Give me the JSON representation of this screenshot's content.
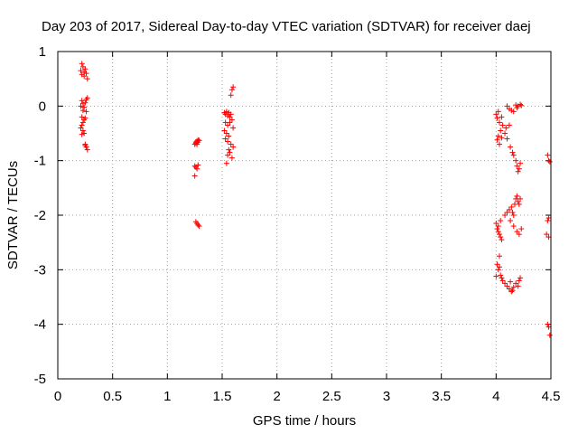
{
  "chart_data": {
    "type": "scatter",
    "title": "Day 203 of 2017, Sidereal Day-to-day VTEC variation (SDTVAR) for receiver daej",
    "xlabel": "GPS time / hours",
    "ylabel": "SDTVAR / TECUs",
    "xlim": [
      0,
      4.5
    ],
    "ylim": [
      -5,
      1
    ],
    "xticks": [
      "0",
      "0.5",
      "1",
      "1.5",
      "2",
      "2.5",
      "3",
      "3.5",
      "4",
      "4.5"
    ],
    "yticks": [
      "1",
      "0",
      "-1",
      "-2",
      "-3",
      "-4",
      "-5"
    ],
    "grid": true,
    "marker": "plus",
    "color": "#ff0000",
    "series": [
      {
        "name": "SDTVAR",
        "points": [
          [
            0.22,
            0.78
          ],
          [
            0.23,
            0.72
          ],
          [
            0.21,
            0.65
          ],
          [
            0.24,
            0.62
          ],
          [
            0.25,
            0.68
          ],
          [
            0.26,
            0.6
          ],
          [
            0.24,
            0.55
          ],
          [
            0.27,
            0.5
          ],
          [
            0.22,
            0.58
          ],
          [
            0.22,
            0.1
          ],
          [
            0.23,
            0.05
          ],
          [
            0.21,
            0.0
          ],
          [
            0.24,
            -0.02
          ],
          [
            0.25,
            0.06
          ],
          [
            0.26,
            0.12
          ],
          [
            0.27,
            0.15
          ],
          [
            0.23,
            -0.08
          ],
          [
            0.26,
            -0.1
          ],
          [
            0.22,
            -0.2
          ],
          [
            0.24,
            -0.25
          ],
          [
            0.25,
            -0.22
          ],
          [
            0.23,
            -0.3
          ],
          [
            0.22,
            -0.35
          ],
          [
            0.21,
            -0.4
          ],
          [
            0.23,
            -0.45
          ],
          [
            0.24,
            -0.5
          ],
          [
            0.22,
            -0.52
          ],
          [
            0.25,
            -0.7
          ],
          [
            0.26,
            -0.75
          ],
          [
            0.27,
            -0.8
          ],
          [
            0.25,
            -0.72
          ],
          [
            1.25,
            -0.7
          ],
          [
            1.26,
            -0.66
          ],
          [
            1.27,
            -0.64
          ],
          [
            1.28,
            -0.62
          ],
          [
            1.26,
            -0.68
          ],
          [
            1.27,
            -0.7
          ],
          [
            1.28,
            -0.66
          ],
          [
            1.29,
            -0.63
          ],
          [
            1.25,
            -1.1
          ],
          [
            1.26,
            -1.12
          ],
          [
            1.28,
            -1.08
          ],
          [
            1.27,
            -1.15
          ],
          [
            1.25,
            -1.28
          ],
          [
            1.26,
            -2.12
          ],
          [
            1.27,
            -2.15
          ],
          [
            1.28,
            -2.18
          ],
          [
            1.29,
            -2.2
          ],
          [
            1.52,
            -0.12
          ],
          [
            1.53,
            -0.15
          ],
          [
            1.54,
            -0.1
          ],
          [
            1.55,
            -0.18
          ],
          [
            1.56,
            -0.12
          ],
          [
            1.57,
            -0.2
          ],
          [
            1.58,
            -0.15
          ],
          [
            1.59,
            -0.25
          ],
          [
            1.53,
            -0.3
          ],
          [
            1.55,
            -0.35
          ],
          [
            1.57,
            -0.3
          ],
          [
            1.52,
            -0.45
          ],
          [
            1.54,
            -0.5
          ],
          [
            1.56,
            -0.55
          ],
          [
            1.53,
            -0.6
          ],
          [
            1.55,
            -0.65
          ],
          [
            1.58,
            -0.7
          ],
          [
            1.56,
            -0.8
          ],
          [
            1.57,
            -0.85
          ],
          [
            1.55,
            -0.9
          ],
          [
            1.59,
            -0.95
          ],
          [
            1.54,
            -1.05
          ],
          [
            1.6,
            -0.75
          ],
          [
            1.6,
            -0.4
          ],
          [
            1.59,
            0.3
          ],
          [
            1.6,
            0.35
          ],
          [
            1.58,
            0.2
          ],
          [
            4.0,
            -0.15
          ],
          [
            4.01,
            -0.22
          ],
          [
            4.03,
            -0.3
          ],
          [
            4.02,
            -0.1
          ],
          [
            4.05,
            -0.2
          ],
          [
            4.06,
            -0.35
          ],
          [
            4.04,
            -0.45
          ],
          [
            4.02,
            -0.55
          ],
          [
            4.01,
            -0.62
          ],
          [
            4.03,
            -0.7
          ],
          [
            4.05,
            -0.58
          ],
          [
            4.08,
            -0.5
          ],
          [
            4.09,
            -0.4
          ],
          [
            4.12,
            -0.35
          ],
          [
            4.1,
            -0.6
          ],
          [
            4.13,
            -0.75
          ],
          [
            4.15,
            -0.85
          ],
          [
            4.16,
            -0.9
          ],
          [
            4.18,
            -1.0
          ],
          [
            4.19,
            -1.1
          ],
          [
            4.2,
            -1.2
          ],
          [
            4.21,
            -1.15
          ],
          [
            4.22,
            -1.05
          ],
          [
            4.1,
            0.0
          ],
          [
            4.12,
            -0.05
          ],
          [
            4.14,
            -0.08
          ],
          [
            4.16,
            -0.1
          ],
          [
            4.18,
            0.02
          ],
          [
            4.2,
            0.0
          ],
          [
            4.22,
            0.03
          ],
          [
            4.23,
            0.01
          ],
          [
            4.19,
            -0.03
          ],
          [
            4.0,
            -2.15
          ],
          [
            4.01,
            -2.25
          ],
          [
            4.02,
            -2.3
          ],
          [
            4.03,
            -2.35
          ],
          [
            4.04,
            -2.4
          ],
          [
            4.05,
            -2.45
          ],
          [
            4.02,
            -2.2
          ],
          [
            4.04,
            -2.1
          ],
          [
            4.08,
            -2.0
          ],
          [
            4.1,
            -1.95
          ],
          [
            4.12,
            -1.9
          ],
          [
            4.14,
            -1.85
          ],
          [
            4.15,
            -1.95
          ],
          [
            4.16,
            -2.0
          ],
          [
            4.17,
            -1.8
          ],
          [
            4.18,
            -1.7
          ],
          [
            4.19,
            -1.65
          ],
          [
            4.2,
            -1.75
          ],
          [
            4.21,
            -1.8
          ],
          [
            4.22,
            -1.7
          ],
          [
            4.13,
            -2.1
          ],
          [
            4.16,
            -2.2
          ],
          [
            4.19,
            -2.3
          ],
          [
            4.21,
            -2.35
          ],
          [
            4.23,
            -2.25
          ],
          [
            4.01,
            -2.9
          ],
          [
            4.02,
            -3.0
          ],
          [
            4.03,
            -2.95
          ],
          [
            4.04,
            -3.1
          ],
          [
            4.05,
            -3.15
          ],
          [
            4.0,
            -3.12
          ],
          [
            4.03,
            -2.75
          ],
          [
            4.06,
            -3.2
          ],
          [
            4.08,
            -3.25
          ],
          [
            4.1,
            -3.3
          ],
          [
            4.12,
            -3.35
          ],
          [
            4.14,
            -3.4
          ],
          [
            4.15,
            -3.38
          ],
          [
            4.16,
            -3.32
          ],
          [
            4.18,
            -3.25
          ],
          [
            4.2,
            -3.3
          ],
          [
            4.21,
            -3.2
          ],
          [
            4.22,
            -3.15
          ],
          [
            4.13,
            -3.22
          ],
          [
            4.47,
            -0.9
          ],
          [
            4.48,
            -1.0
          ],
          [
            4.49,
            -1.02
          ],
          [
            4.47,
            -2.1
          ],
          [
            4.48,
            -2.05
          ],
          [
            4.46,
            -2.35
          ],
          [
            4.48,
            -2.4
          ],
          [
            4.47,
            -4.0
          ],
          [
            4.48,
            -4.05
          ],
          [
            4.49,
            -4.2
          ]
        ]
      }
    ]
  }
}
